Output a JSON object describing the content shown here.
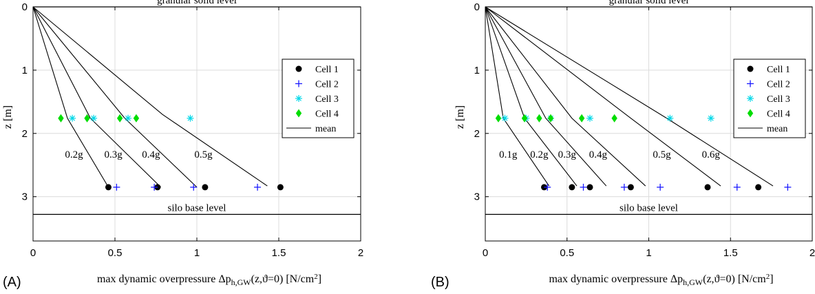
{
  "chart_data": [
    {
      "type": "scatter",
      "panel_label": "(A)",
      "xlabel": "max dynamic overpressure Δp",
      "xlabel_sub": "h,GW",
      "xlabel_tail": "(z,ϑ=0) [N/cm",
      "xlabel_sup": "2",
      "xlabel_end": "]",
      "ylabel": "z [m]",
      "xlim": [
        0,
        2
      ],
      "ylim": [
        0,
        3.7
      ],
      "y_reversed": true,
      "grid": true,
      "xticks": [
        0,
        0.5,
        1,
        1.5,
        2
      ],
      "xtick_labels": [
        "0",
        "0.5",
        "1",
        "1.5",
        "2"
      ],
      "yticks": [
        0,
        1,
        2,
        3
      ],
      "ytick_labels": [
        "0",
        "1",
        "2",
        "3"
      ],
      "legend_position": "top-right",
      "hlines": [
        {
          "y": 0,
          "label": "granular solid level"
        },
        {
          "y": 3.28,
          "label": "silo base level"
        }
      ],
      "series": [
        {
          "name": "Cell 1",
          "marker": "dot",
          "color": "#000000",
          "points": [
            [
              0.46,
              2.85
            ],
            [
              0.76,
              2.85
            ],
            [
              1.05,
              2.85
            ],
            [
              1.51,
              2.85
            ]
          ]
        },
        {
          "name": "Cell 2",
          "marker": "plus",
          "color": "#1a1aff",
          "points": [
            [
              0.51,
              2.85
            ],
            [
              0.74,
              2.85
            ],
            [
              0.98,
              2.85
            ],
            [
              1.37,
              2.85
            ]
          ]
        },
        {
          "name": "Cell 3",
          "marker": "star",
          "color": "#00d8e8",
          "points": [
            [
              0.24,
              1.76
            ],
            [
              0.37,
              1.76
            ],
            [
              0.58,
              1.76
            ],
            [
              0.96,
              1.76
            ]
          ]
        },
        {
          "name": "Cell 4",
          "marker": "diamond",
          "color": "#00dd00",
          "points": [
            [
              0.17,
              1.76
            ],
            [
              0.33,
              1.76
            ],
            [
              0.53,
              1.76
            ],
            [
              0.63,
              1.76
            ]
          ]
        },
        {
          "name": "mean",
          "marker": "line",
          "color": "#000000",
          "lines": [
            {
              "label": "0.2g",
              "points": [
                [
                  0,
                  0
                ],
                [
                  0.21,
                  1.76
                ],
                [
                  0.46,
                  2.85
                ]
              ]
            },
            {
              "label": "0.3g",
              "points": [
                [
                  0,
                  0
                ],
                [
                  0.35,
                  1.76
                ],
                [
                  0.78,
                  2.85
                ]
              ]
            },
            {
              "label": "0.4g",
              "points": [
                [
                  0,
                  0
                ],
                [
                  0.56,
                  1.76
                ],
                [
                  1.0,
                  2.85
                ]
              ]
            },
            {
              "label": "0.5g",
              "points": [
                [
                  0,
                  0
                ],
                [
                  0.79,
                  1.7
                ],
                [
                  1.43,
                  2.83
                ]
              ]
            }
          ]
        }
      ],
      "annotations": [
        {
          "text": "0.2g",
          "x": 0.25,
          "y": 2.33
        },
        {
          "text": "0.3g",
          "x": 0.49,
          "y": 2.33
        },
        {
          "text": "0.4g",
          "x": 0.72,
          "y": 2.33
        },
        {
          "text": "0.5g",
          "x": 1.04,
          "y": 2.33
        }
      ]
    },
    {
      "type": "scatter",
      "panel_label": "(B)",
      "xlabel": "max dynamic overpressure Δp",
      "xlabel_sub": "h,GW",
      "xlabel_tail": "(z,ϑ=0) [N/cm",
      "xlabel_sup": "2",
      "xlabel_end": "]",
      "ylabel": "z [m]",
      "xlim": [
        0,
        2
      ],
      "ylim": [
        0,
        3.7
      ],
      "y_reversed": true,
      "grid": true,
      "xticks": [
        0,
        0.5,
        1,
        1.5,
        2
      ],
      "xtick_labels": [
        "0",
        "0.5",
        "1",
        "1.5",
        "2"
      ],
      "yticks": [
        0,
        1,
        2,
        3
      ],
      "ytick_labels": [
        "0",
        "1",
        "2",
        "3"
      ],
      "legend_position": "top-right",
      "hlines": [
        {
          "y": 0,
          "label": "granular solid level"
        },
        {
          "y": 3.28,
          "label": "silo base level"
        }
      ],
      "series": [
        {
          "name": "Cell 1",
          "marker": "dot",
          "color": "#000000",
          "points": [
            [
              0.36,
              2.85
            ],
            [
              0.53,
              2.85
            ],
            [
              0.64,
              2.85
            ],
            [
              0.89,
              2.85
            ],
            [
              1.36,
              2.85
            ],
            [
              1.67,
              2.85
            ]
          ]
        },
        {
          "name": "Cell 2",
          "marker": "plus",
          "color": "#1a1aff",
          "points": [
            [
              0.38,
              2.85
            ],
            [
              0.6,
              2.85
            ],
            [
              0.85,
              2.85
            ],
            [
              1.07,
              2.85
            ],
            [
              1.54,
              2.85
            ],
            [
              1.85,
              2.85
            ]
          ]
        },
        {
          "name": "Cell 3",
          "marker": "star",
          "color": "#00d8e8",
          "points": [
            [
              0.12,
              1.76
            ],
            [
              0.25,
              1.76
            ],
            [
              0.4,
              1.76
            ],
            [
              0.64,
              1.76
            ],
            [
              1.13,
              1.76
            ],
            [
              1.38,
              1.76
            ]
          ]
        },
        {
          "name": "Cell 4",
          "marker": "diamond",
          "color": "#00dd00",
          "points": [
            [
              0.08,
              1.76
            ],
            [
              0.24,
              1.76
            ],
            [
              0.33,
              1.76
            ],
            [
              0.4,
              1.76
            ],
            [
              0.59,
              1.76
            ],
            [
              0.79,
              1.76
            ]
          ]
        },
        {
          "name": "mean",
          "marker": "line",
          "color": "#000000",
          "lines": [
            {
              "label": "0.1g",
              "points": [
                [
                  0,
                  0
                ],
                [
                  0.11,
                  1.76
                ],
                [
                  0.39,
                  2.83
                ]
              ]
            },
            {
              "label": "0.2g",
              "points": [
                [
                  0,
                  0
                ],
                [
                  0.24,
                  1.76
                ],
                [
                  0.56,
                  2.83
                ]
              ]
            },
            {
              "label": "0.3g",
              "points": [
                [
                  0,
                  0
                ],
                [
                  0.37,
                  1.76
                ],
                [
                  0.74,
                  2.83
                ]
              ]
            },
            {
              "label": "0.4g",
              "points": [
                [
                  0,
                  0
                ],
                [
                  0.53,
                  1.76
                ],
                [
                  0.98,
                  2.83
                ]
              ]
            },
            {
              "label": "0.5g",
              "points": [
                [
                  0,
                  0
                ],
                [
                  0.89,
                  1.76
                ],
                [
                  1.44,
                  2.83
                ]
              ]
            },
            {
              "label": "0.6g",
              "points": [
                [
                  0,
                  0
                ],
                [
                  1.11,
                  1.76
                ],
                [
                  1.76,
                  2.83
                ]
              ]
            }
          ]
        }
      ],
      "annotations": [
        {
          "text": "0.1g",
          "x": 0.14,
          "y": 2.33
        },
        {
          "text": "0.2g",
          "x": 0.33,
          "y": 2.33
        },
        {
          "text": "0.3g",
          "x": 0.5,
          "y": 2.33
        },
        {
          "text": "0.4g",
          "x": 0.69,
          "y": 2.33
        },
        {
          "text": "0.5g",
          "x": 1.08,
          "y": 2.33
        },
        {
          "text": "0.6g",
          "x": 1.38,
          "y": 2.33
        }
      ]
    }
  ]
}
